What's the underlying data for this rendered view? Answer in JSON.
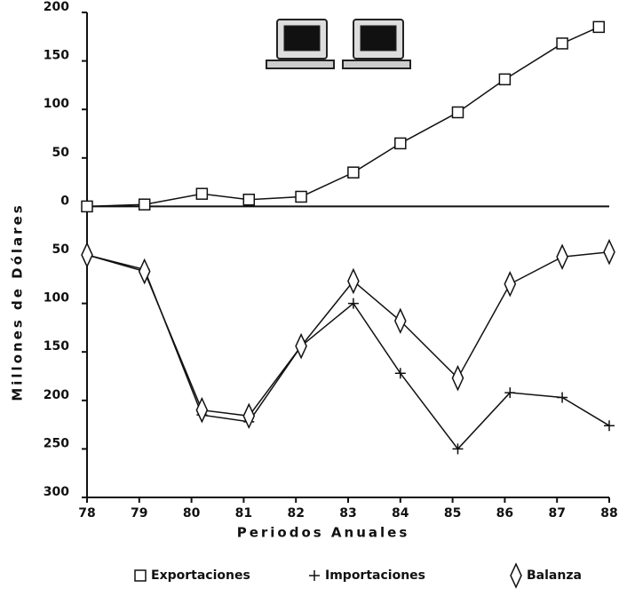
{
  "chart_data": {
    "type": "line",
    "xlabel": "Periodos Anuales",
    "ylabel": "Millones de Dólares",
    "xlim": [
      78,
      88
    ],
    "xticks": [
      78,
      79,
      80,
      81,
      82,
      83,
      84,
      85,
      86,
      87,
      88
    ],
    "ylim": [
      -300,
      200
    ],
    "yticks": [
      {
        "value": -300,
        "label": "300"
      },
      {
        "value": -250,
        "label": "250"
      },
      {
        "value": -200,
        "label": "200"
      },
      {
        "value": -150,
        "label": "150"
      },
      {
        "value": -100,
        "label": "100"
      },
      {
        "value": -50,
        "label": "50"
      },
      0,
      50,
      100,
      150,
      200
    ],
    "series": [
      {
        "name": "Exportaciones",
        "marker": "square",
        "color": "#111111",
        "x": [
          78,
          79.1,
          80.2,
          81.1,
          82.1,
          83.1,
          84.0,
          85.1,
          86.0,
          87.1,
          87.8
        ],
        "values": [
          0,
          2,
          13,
          7,
          10,
          35,
          65,
          97,
          131,
          168,
          185
        ]
      },
      {
        "name": "Importaciones",
        "marker": "plus",
        "color": "#111111",
        "x": [
          78,
          79.1,
          80.2,
          81.1,
          82.1,
          83.1,
          84.0,
          85.1,
          86.1,
          87.1,
          88
        ],
        "values": [
          -50,
          -65,
          -215,
          -222,
          -144,
          -100,
          -172,
          -250,
          -192,
          -197,
          -226
        ]
      },
      {
        "name": "Balanza",
        "marker": "diamond",
        "color": "#111111",
        "x": [
          78,
          79.1,
          80.2,
          81.1,
          82.1,
          83.1,
          84.0,
          85.1,
          86.1,
          87.1,
          88
        ],
        "values": [
          -50,
          -67,
          -210,
          -216,
          -144,
          -77,
          -118,
          -177,
          -80,
          -52,
          -47
        ]
      }
    ]
  }
}
